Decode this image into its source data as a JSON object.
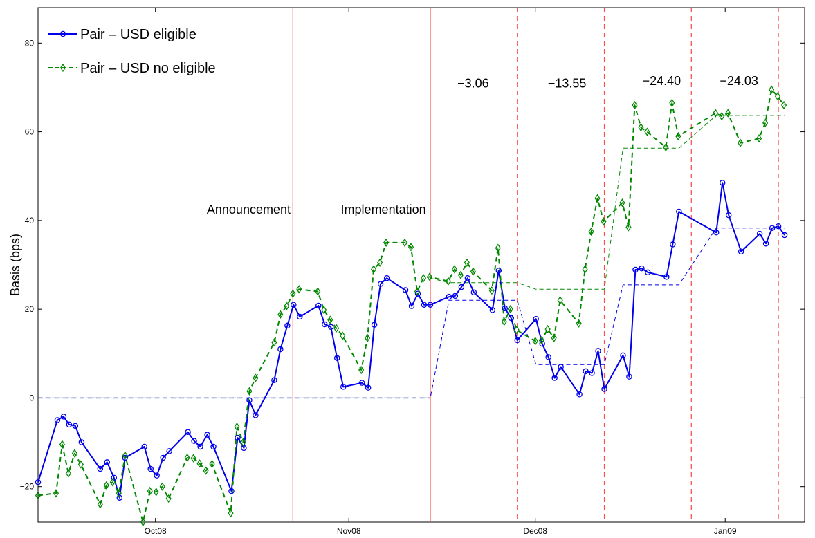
{
  "chart_data": {
    "type": "line",
    "title": "",
    "xlabel": "",
    "ylabel": "Basis (bps)",
    "xlim": [
      0,
      1110
    ],
    "ylim": [
      -28,
      88
    ],
    "yticks": [
      -20,
      0,
      20,
      40,
      60,
      80
    ],
    "xticks": [
      {
        "label": "Oct08",
        "x": 170
      },
      {
        "label": "Nov08",
        "x": 450
      },
      {
        "label": "Dec08",
        "x": 720
      },
      {
        "label": "Jan09",
        "x": 995
      }
    ],
    "legend": {
      "location": "top-left"
    },
    "series": [
      {
        "name": "Pair – USD eligible",
        "color": "#0000ee",
        "line_style": "solid",
        "marker": "circle",
        "points": [
          [
            0,
            -19
          ],
          [
            28,
            -5
          ],
          [
            37,
            -4.2
          ],
          [
            45,
            -6
          ],
          [
            54,
            -6.3
          ],
          [
            63,
            -10
          ],
          [
            90,
            -16
          ],
          [
            100,
            -14.5
          ],
          [
            110,
            -18
          ],
          [
            118,
            -22.5
          ],
          [
            126,
            -13.5
          ],
          [
            154,
            -11
          ],
          [
            163,
            -16
          ],
          [
            172,
            -17.5
          ],
          [
            181,
            -13.5
          ],
          [
            190,
            -12
          ],
          [
            217,
            -7.7
          ],
          [
            226,
            -9.7
          ],
          [
            235,
            -11
          ],
          [
            245,
            -8.3
          ],
          [
            254,
            -11
          ],
          [
            280,
            -21
          ],
          [
            289,
            -9
          ],
          [
            298,
            -11.3
          ],
          [
            306,
            -0.5
          ],
          [
            315,
            -3.9
          ],
          [
            342,
            4
          ],
          [
            351,
            11
          ],
          [
            361,
            16.3
          ],
          [
            370,
            21
          ],
          [
            379,
            18.3
          ],
          [
            406,
            20.8
          ],
          [
            415,
            16.6
          ],
          [
            424,
            16
          ],
          [
            433,
            9
          ],
          [
            442,
            2.5
          ],
          [
            469,
            3.4
          ],
          [
            478,
            2.3
          ],
          [
            487,
            16.5
          ],
          [
            496,
            25.7
          ],
          [
            505,
            27
          ],
          [
            532,
            24.3
          ],
          [
            541,
            20.7
          ],
          [
            550,
            23.5
          ],
          [
            559,
            21
          ],
          [
            568,
            21
          ],
          [
            595,
            22.8
          ],
          [
            604,
            23
          ],
          [
            613,
            25
          ],
          [
            622,
            27
          ],
          [
            631,
            23.8
          ],
          [
            658,
            19.8
          ],
          [
            667,
            28.7
          ],
          [
            676,
            20.2
          ],
          [
            685,
            18
          ],
          [
            694,
            13
          ],
          [
            721,
            17.8
          ],
          [
            730,
            12.2
          ],
          [
            739,
            9.2
          ],
          [
            748,
            4.5
          ],
          [
            757,
            7
          ],
          [
            784,
            0.8
          ],
          [
            793,
            6
          ],
          [
            802,
            5.6
          ],
          [
            811,
            10.6
          ],
          [
            820,
            2
          ],
          [
            847,
            9.6
          ],
          [
            856,
            4.8
          ],
          [
            865,
            28.9
          ],
          [
            874,
            29.2
          ],
          [
            883,
            28.3
          ],
          [
            910,
            27.3
          ],
          [
            919,
            34.6
          ],
          [
            928,
            42
          ],
          [
            982,
            37.3
          ],
          [
            991,
            48.5
          ],
          [
            1000,
            41.2
          ],
          [
            1018,
            33
          ],
          [
            1045,
            37
          ],
          [
            1054,
            34.8
          ],
          [
            1063,
            38.3
          ],
          [
            1072,
            38.7
          ],
          [
            1081,
            36.7
          ]
        ]
      },
      {
        "name": "Pair – USD no eligible",
        "color": "#008800",
        "line_style": "dashed",
        "marker": "diamond",
        "points": [
          [
            0,
            -22
          ],
          [
            26,
            -21.5
          ],
          [
            35,
            -10.5
          ],
          [
            44,
            -17
          ],
          [
            53,
            -12.5
          ],
          [
            62,
            -15
          ],
          [
            90,
            -24
          ],
          [
            99,
            -19.7
          ],
          [
            108,
            -19
          ],
          [
            117,
            -21.5
          ],
          [
            126,
            -13
          ],
          [
            152,
            -28
          ],
          [
            162,
            -21
          ],
          [
            171,
            -21.2
          ],
          [
            180,
            -20
          ],
          [
            189,
            -22.7
          ],
          [
            216,
            -13.5
          ],
          [
            225,
            -13.6
          ],
          [
            234,
            -14.8
          ],
          [
            243,
            -16.4
          ],
          [
            252,
            -14.9
          ],
          [
            279,
            -26
          ],
          [
            288,
            -6.5
          ],
          [
            297,
            -10
          ],
          [
            306,
            1.5
          ],
          [
            315,
            4.5
          ],
          [
            342,
            12.5
          ],
          [
            351,
            18.8
          ],
          [
            360,
            20.7
          ],
          [
            369,
            23.5
          ],
          [
            378,
            24.5
          ],
          [
            405,
            24
          ],
          [
            414,
            19.8
          ],
          [
            423,
            17.6
          ],
          [
            432,
            15.7
          ],
          [
            441,
            14
          ],
          [
            468,
            6.3
          ],
          [
            477,
            13.5
          ],
          [
            486,
            29
          ],
          [
            495,
            30.5
          ],
          [
            504,
            35
          ],
          [
            531,
            35
          ],
          [
            540,
            34
          ],
          [
            549,
            24
          ],
          [
            558,
            27
          ],
          [
            567,
            27.3
          ],
          [
            594,
            26.3
          ],
          [
            603,
            29
          ],
          [
            612,
            27.7
          ],
          [
            621,
            30.5
          ],
          [
            630,
            28.5
          ],
          [
            657,
            24.2
          ],
          [
            666,
            33.8
          ],
          [
            675,
            17.2
          ],
          [
            684,
            20
          ],
          [
            693,
            15.3
          ],
          [
            720,
            12.8
          ],
          [
            729,
            13
          ],
          [
            738,
            15.5
          ],
          [
            747,
            13.5
          ],
          [
            756,
            22
          ],
          [
            783,
            16.8
          ],
          [
            792,
            29
          ],
          [
            801,
            37.5
          ],
          [
            810,
            45
          ],
          [
            819,
            39.8
          ],
          [
            846,
            44
          ],
          [
            855,
            38.5
          ],
          [
            864,
            66
          ],
          [
            873,
            61
          ],
          [
            882,
            60
          ],
          [
            909,
            56.5
          ],
          [
            918,
            66.5
          ],
          [
            927,
            59
          ],
          [
            981,
            64.2
          ],
          [
            990,
            63.5
          ],
          [
            999,
            64.2
          ],
          [
            1017,
            57.5
          ],
          [
            1044,
            58.5
          ],
          [
            1053,
            62
          ],
          [
            1062,
            69.5
          ],
          [
            1071,
            68
          ],
          [
            1080,
            66
          ]
        ]
      },
      {
        "name": "",
        "color": "#0000ee",
        "line_style": "thin-dashed",
        "marker": "none",
        "points": [
          [
            0,
            0
          ],
          [
            568,
            0
          ],
          [
            595,
            22
          ],
          [
            694,
            22
          ],
          [
            721,
            7.5
          ],
          [
            820,
            7.5
          ],
          [
            847,
            25.5
          ],
          [
            928,
            25.5
          ],
          [
            982,
            38.3
          ],
          [
            1081,
            38.3
          ]
        ]
      },
      {
        "name": "",
        "color": "#008800",
        "line_style": "thin-dashed",
        "marker": "none",
        "points": [
          [
            568,
            27
          ],
          [
            595,
            26
          ],
          [
            694,
            26
          ],
          [
            721,
            24.5
          ],
          [
            820,
            24.5
          ],
          [
            847,
            56.3
          ],
          [
            928,
            56.3
          ],
          [
            982,
            63.7
          ],
          [
            1081,
            63.7
          ]
        ]
      }
    ],
    "baseline": {
      "y": 0,
      "color": "#2a4f8a",
      "line_style": "dashed",
      "x_range": [
        0,
        568
      ]
    },
    "vlines": [
      {
        "x": 369,
        "color": "#ff4a4a",
        "line_style": "solid"
      },
      {
        "x": 568,
        "color": "#ff4a4a",
        "line_style": "solid"
      },
      {
        "x": 694,
        "color": "#ff4a4a",
        "line_style": "dashed"
      },
      {
        "x": 820,
        "color": "#ff4a4a",
        "line_style": "dashed"
      },
      {
        "x": 946,
        "color": "#ff4a4a",
        "line_style": "dashed"
      },
      {
        "x": 1072,
        "color": "#ff4a4a",
        "line_style": "dashed"
      }
    ],
    "annotations": [
      {
        "text": "Announcement",
        "x": 305,
        "y": 41.5,
        "anchor": "middle"
      },
      {
        "text": "Implementation",
        "x": 500,
        "y": 41.5,
        "anchor": "middle"
      },
      {
        "text": "−3.06",
        "x": 630,
        "y": 70,
        "anchor": "middle"
      },
      {
        "text": "−13.55",
        "x": 766,
        "y": 70,
        "anchor": "middle"
      },
      {
        "text": "−24.40",
        "x": 903,
        "y": 70.5,
        "anchor": "middle"
      },
      {
        "text": "−24.03",
        "x": 1015,
        "y": 70.5,
        "anchor": "middle"
      }
    ]
  }
}
